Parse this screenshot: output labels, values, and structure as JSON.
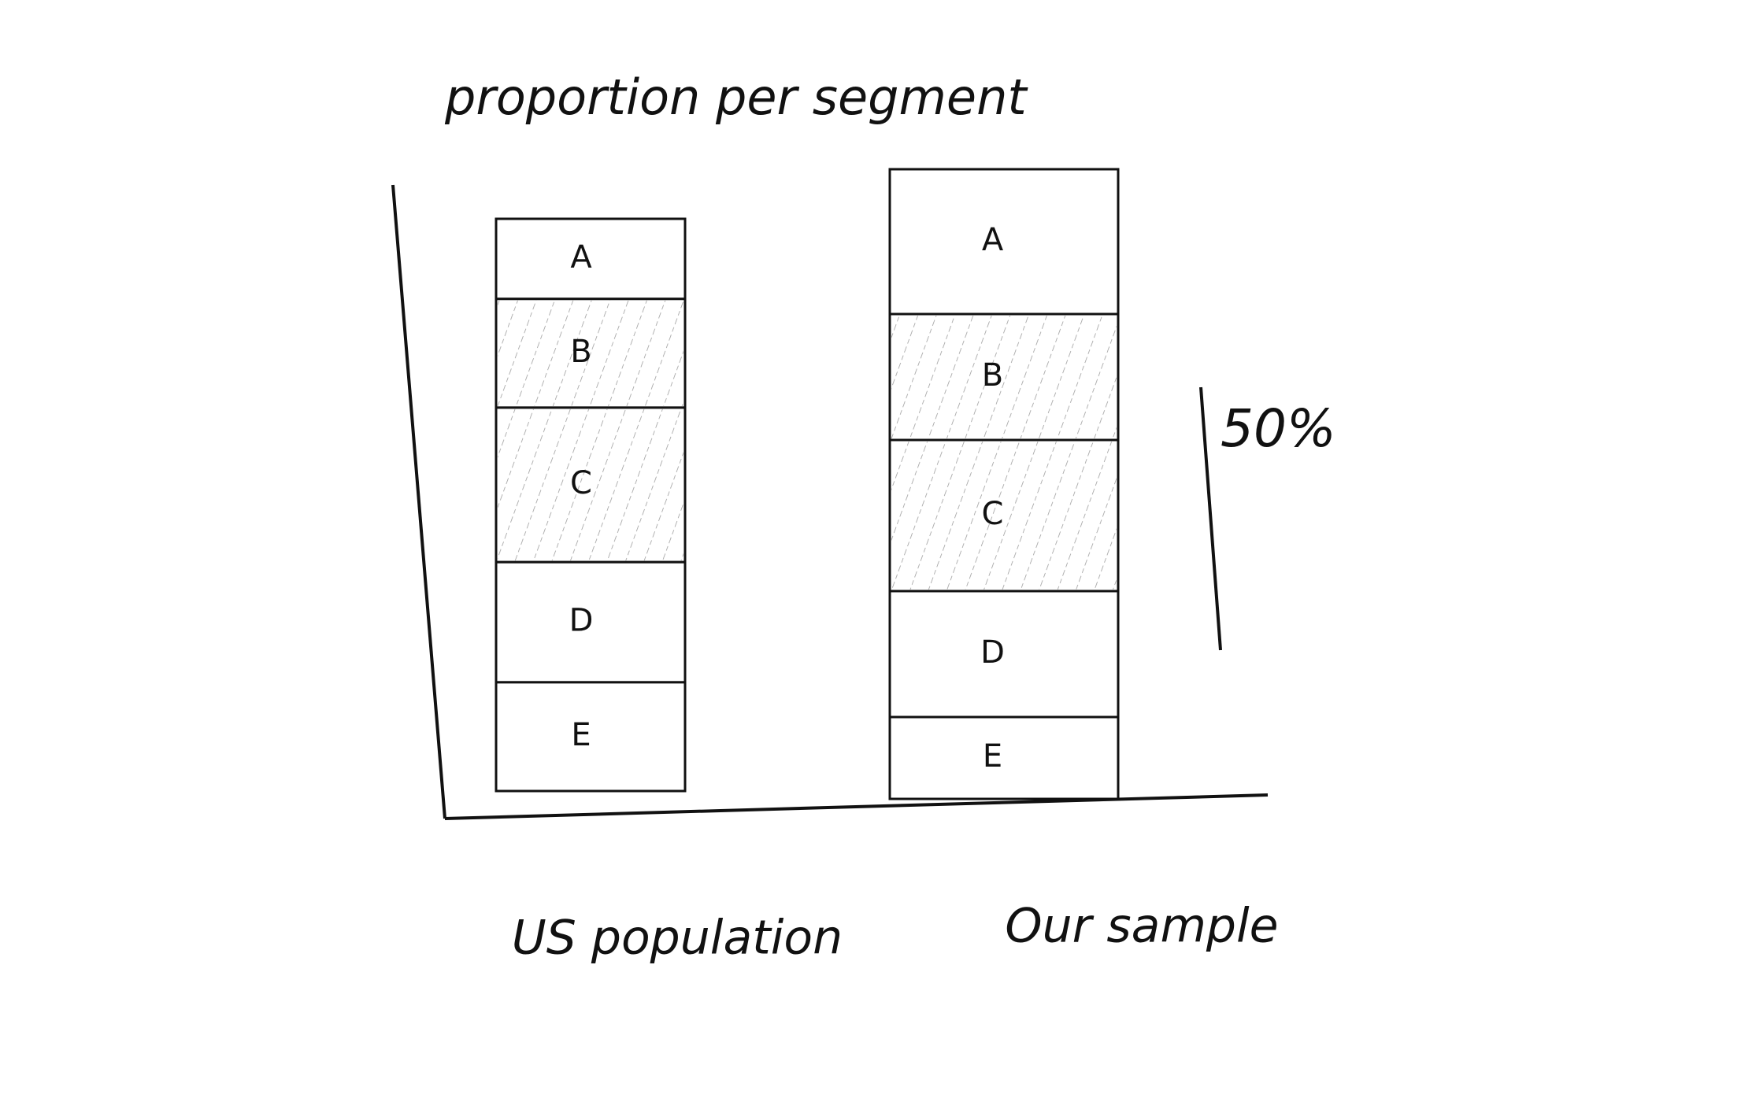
{
  "chart_data": {
    "type": "stacked_bar",
    "title": "proportion per segment",
    "categories": [
      "US population",
      "Our sample"
    ],
    "series": [
      {
        "name": "A",
        "color": "#ffffff",
        "hatched": false,
        "values": [
          14,
          23
        ]
      },
      {
        "name": "B",
        "color": "#ffffff",
        "hatched": true,
        "values": [
          19,
          20
        ]
      },
      {
        "name": "C",
        "color": "#ffffff",
        "hatched": true,
        "values": [
          27,
          24
        ]
      },
      {
        "name": "D",
        "color": "#ffffff",
        "hatched": false,
        "values": [
          21,
          20
        ]
      },
      {
        "name": "E",
        "color": "#ffffff",
        "hatched": false,
        "values": [
          19,
          13
        ]
      }
    ],
    "annotation": "50%"
  }
}
